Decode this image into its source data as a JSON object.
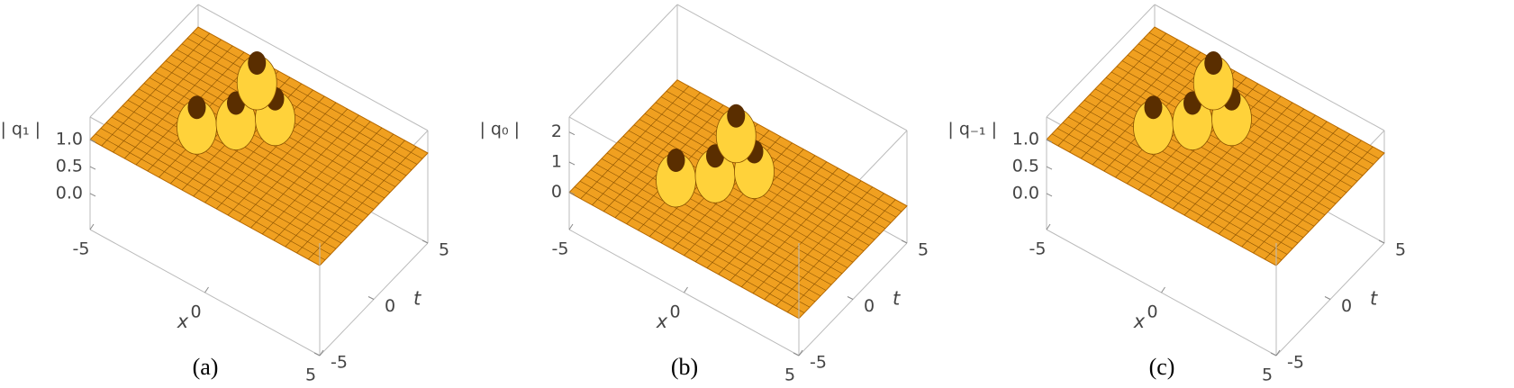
{
  "chart_data": [
    {
      "type": "surface3d",
      "z_label": "| q₁ |",
      "x_label": "x",
      "t_label": "t",
      "caption": "(a)",
      "xlim": [
        -5,
        5
      ],
      "tlim": [
        -5,
        5
      ],
      "zlim": [
        -0.67,
        1.42
      ],
      "xticks": [
        -5,
        0,
        5
      ],
      "tticks": [
        -5,
        0,
        5
      ],
      "zticks": [
        {
          "value": 0,
          "label": "0.0"
        },
        {
          "value": 0.5,
          "label": "0.5"
        },
        {
          "value": 1,
          "label": "1.0"
        }
      ],
      "color": "#f0a020"
    },
    {
      "type": "surface3d",
      "z_label": "| q₀ |",
      "x_label": "x",
      "t_label": "t",
      "caption": "(b)",
      "xlim": [
        -5,
        5
      ],
      "tlim": [
        -5,
        5
      ],
      "zlim": [
        -1.25,
        2.5
      ],
      "xticks": [
        -5,
        0,
        5
      ],
      "tticks": [
        -5,
        0,
        5
      ],
      "zticks": [
        0,
        1,
        2
      ],
      "color": "#f0a020"
    },
    {
      "type": "surface3d",
      "z_label": "| q₋₁ |",
      "x_label": "x",
      "t_label": "t",
      "caption": "(c)",
      "xlim": [
        -5,
        5
      ],
      "tlim": [
        -5,
        5
      ],
      "zlim": [
        -0.67,
        1.42
      ],
      "xticks": [
        -5,
        0,
        5
      ],
      "tticks": [
        -5,
        0,
        5
      ],
      "zticks": [
        {
          "value": 0,
          "label": "0.0"
        },
        {
          "value": 0.5,
          "label": "0.5"
        },
        {
          "value": 1,
          "label": "1.0"
        }
      ],
      "color": "#f0a020"
    }
  ]
}
